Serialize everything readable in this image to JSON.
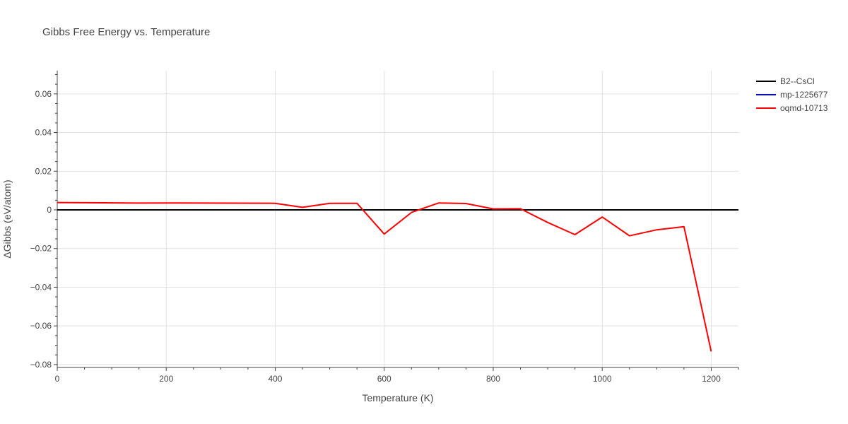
{
  "chart_data": {
    "type": "line",
    "title": "Gibbs Free Energy vs. Temperature",
    "xlabel": "Temperature (K)",
    "ylabel": "ΔGibbs (eV/atom)",
    "xlim": [
      0,
      1250
    ],
    "ylim": [
      -0.0815,
      0.072
    ],
    "x_ticks": [
      0,
      200,
      400,
      600,
      800,
      1000,
      1200
    ],
    "x_tick_labels": [
      "0",
      "200",
      "400",
      "600",
      "800",
      "1000",
      "1200"
    ],
    "y_ticks": [
      -0.08,
      -0.06,
      -0.04,
      -0.02,
      0,
      0.02,
      0.04,
      0.06
    ],
    "y_tick_labels": [
      "−0.08",
      "−0.06",
      "−0.04",
      "−0.02",
      "0",
      "0.02",
      "0.04",
      "0.06"
    ],
    "grid": true,
    "legend_position": "top-right",
    "series": [
      {
        "name": "B2--CsCl",
        "color": "#000000",
        "x": [
          0,
          1250
        ],
        "y": [
          0,
          0
        ]
      },
      {
        "name": "mp-1225677",
        "color": "#0000ff",
        "x": [],
        "y": []
      },
      {
        "name": "oqmd-10713",
        "color": "#ff0000",
        "x": [
          0,
          150,
          200,
          400,
          450,
          500,
          550,
          600,
          650,
          700,
          750,
          800,
          850,
          900,
          950,
          1000,
          1050,
          1100,
          1150,
          1200
        ],
        "y": [
          0.0038,
          0.0035,
          0.0036,
          0.0034,
          0.0013,
          0.0034,
          0.0034,
          -0.0125,
          -0.0013,
          0.0036,
          0.0033,
          0.0005,
          0.0006,
          -0.0065,
          -0.0128,
          -0.0037,
          -0.0134,
          -0.0103,
          -0.0087,
          -0.0732
        ]
      }
    ]
  }
}
